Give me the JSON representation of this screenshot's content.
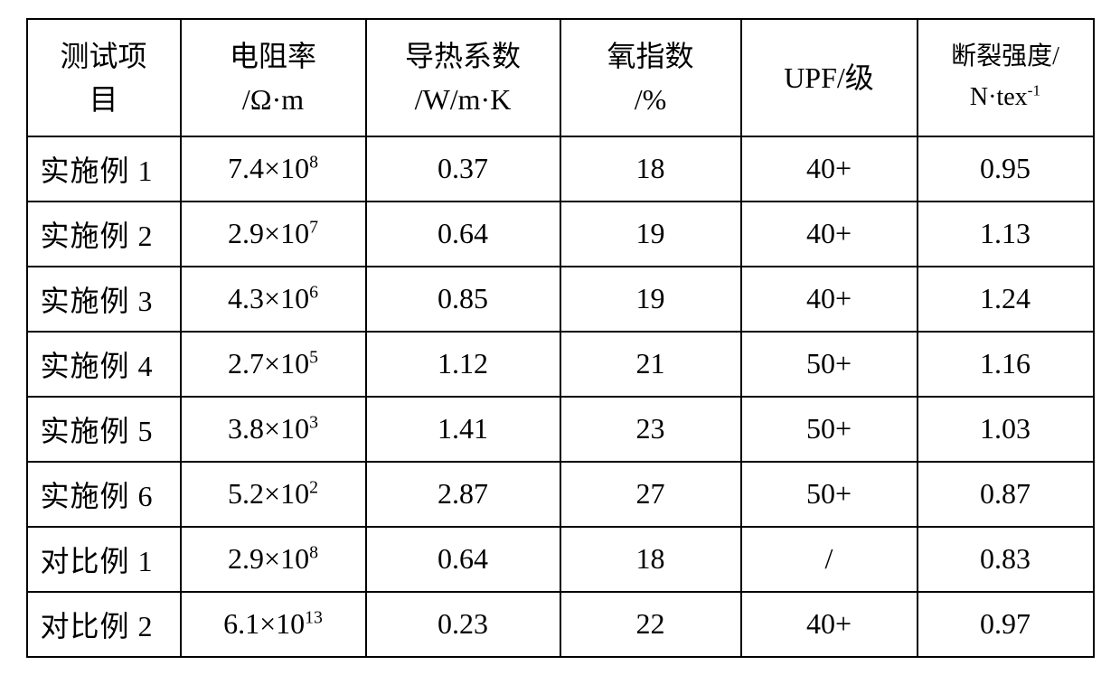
{
  "table": {
    "columns": [
      {
        "label_html": "测试项<br>目",
        "class": "col-0",
        "align": "label"
      },
      {
        "label_html": "电阻率<br>/Ω·m",
        "class": "col-1",
        "align": "val"
      },
      {
        "label_html": "导热系数<br>/W/m·K",
        "class": "col-2",
        "align": "val"
      },
      {
        "label_html": "氧指数<br>/%",
        "class": "col-3",
        "align": "val"
      },
      {
        "label_html": "UPF/级",
        "class": "col-4",
        "align": "val"
      },
      {
        "label_html": "断裂强度/<br>N·tex<sup>-1</sup>",
        "class": "col-5 hdr-small",
        "align": "val"
      }
    ],
    "rows": [
      {
        "label": "实施例 1",
        "resistivity_html": "7.4×10<sup>8</sup>",
        "thermal": "0.37",
        "oxygen": "18",
        "upf": "40+",
        "strength": "0.95"
      },
      {
        "label": "实施例 2",
        "resistivity_html": "2.9×10<sup>7</sup>",
        "thermal": "0.64",
        "oxygen": "19",
        "upf": "40+",
        "strength": "1.13"
      },
      {
        "label": "实施例 3",
        "resistivity_html": "4.3×10<sup>6</sup>",
        "thermal": "0.85",
        "oxygen": "19",
        "upf": "40+",
        "strength": "1.24"
      },
      {
        "label": "实施例 4",
        "resistivity_html": "2.7×10<sup>5</sup>",
        "thermal": "1.12",
        "oxygen": "21",
        "upf": "50+",
        "strength": "1.16"
      },
      {
        "label": "实施例 5",
        "resistivity_html": "3.8×10<sup>3</sup>",
        "thermal": "1.41",
        "oxygen": "23",
        "upf": "50+",
        "strength": "1.03"
      },
      {
        "label": "实施例 6",
        "resistivity_html": "5.2×10<sup>2</sup>",
        "thermal": "2.87",
        "oxygen": "27",
        "upf": "50+",
        "strength": "0.87"
      },
      {
        "label": "对比例 1",
        "resistivity_html": "2.9×10<sup>8</sup>",
        "thermal": "0.64",
        "oxygen": "18",
        "upf": "/",
        "strength": "0.83"
      },
      {
        "label": "对比例 2",
        "resistivity_html": "6.1×10<sup>13</sup>",
        "thermal": "0.23",
        "oxygen": "22",
        "upf": "40+",
        "strength": "0.97"
      }
    ],
    "colors": {
      "border": "#000000",
      "background": "#ffffff",
      "text": "#000000"
    },
    "font": {
      "family": "SimSun / Times",
      "header_size_pt": 24,
      "cell_size_pt": 24
    }
  }
}
